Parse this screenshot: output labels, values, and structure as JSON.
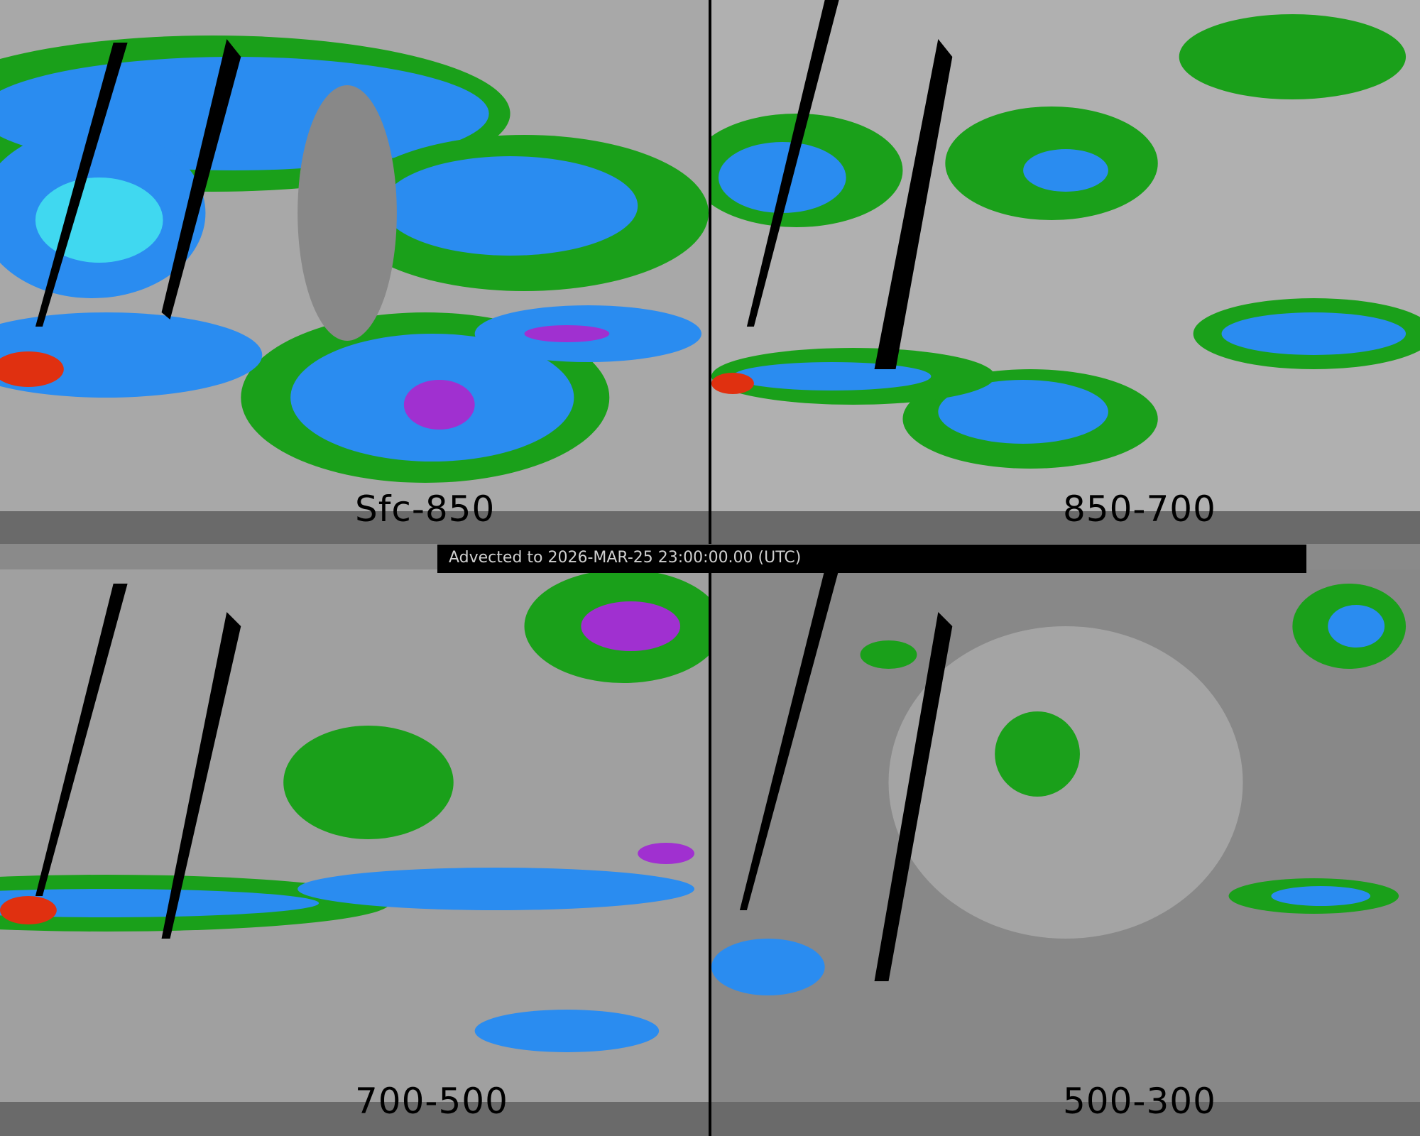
{
  "timestamp": "Advected to 2026-MAR-25 23:00:00.00 (UTC)",
  "panels": [
    {
      "label": "Sfc-850",
      "moisture": "high"
    },
    {
      "label": "850-700",
      "moisture": "medium"
    },
    {
      "label": "700-500",
      "moisture": "low"
    },
    {
      "label": "500-300",
      "moisture": "very-low"
    }
  ],
  "colors": {
    "background_gray": "#9a9a9a",
    "green": "#1a9a1a",
    "blue": "#2a8cf0",
    "cyan": "#40d8f0",
    "purple": "#a030d0",
    "red": "#e03010",
    "no_data": "#000000"
  }
}
